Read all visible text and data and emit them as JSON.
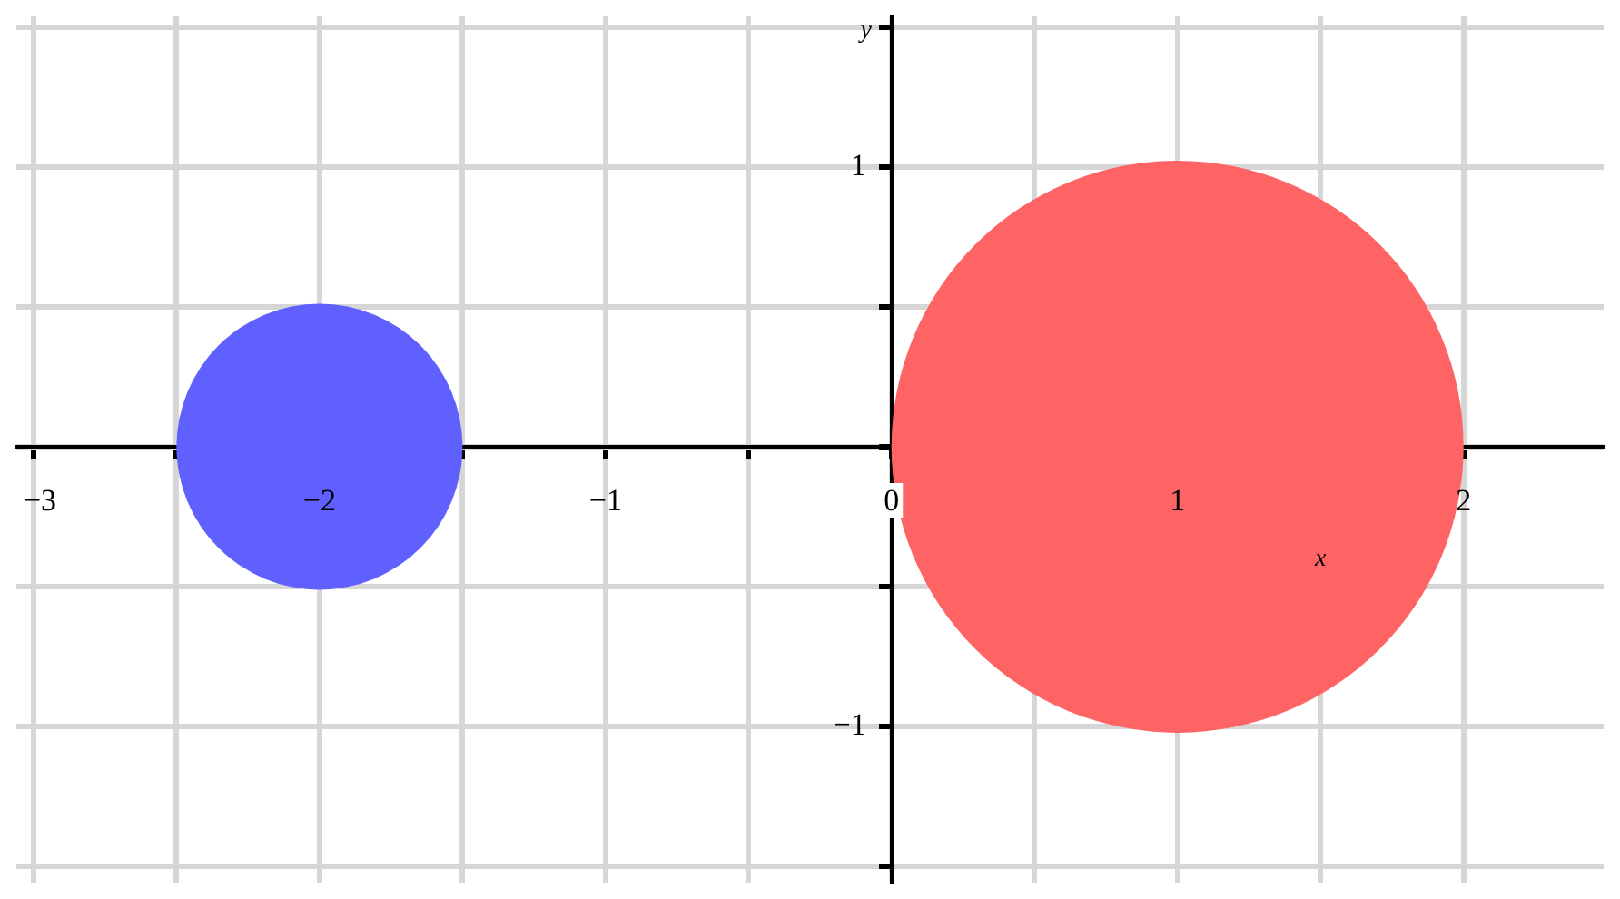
{
  "chart_data": {
    "type": "bubble",
    "xlabel": "x",
    "ylabel": "y",
    "x": [
      -2,
      1
    ],
    "values": [
      0,
      0
    ],
    "sizes": [
      0.25,
      1
    ],
    "colors": [
      "#6060ff",
      "#ff6464"
    ],
    "xlim": [
      -3.06,
      2.49
    ],
    "ylim": [
      -1.56,
      1.54
    ],
    "xticks": [
      {
        "value": -3,
        "label": "−3"
      },
      {
        "value": -2.5,
        "label": null
      },
      {
        "value": -2,
        "label": "−2"
      },
      {
        "value": -1.5,
        "label": null
      },
      {
        "value": -1,
        "label": "−1"
      },
      {
        "value": -0.5,
        "label": null
      },
      {
        "value": 0,
        "label": "0"
      },
      {
        "value": 0.5,
        "label": null
      },
      {
        "value": 1,
        "label": "1"
      },
      {
        "value": 1.5,
        "label": null
      },
      {
        "value": 2,
        "label": "2"
      }
    ],
    "yticks": [
      {
        "value": -1.5,
        "label": null
      },
      {
        "value": -1,
        "label": "−1"
      },
      {
        "value": -0.5,
        "label": null
      },
      {
        "value": 0,
        "label": null
      },
      {
        "value": 0.5,
        "label": null
      },
      {
        "value": 1,
        "label": "1"
      },
      {
        "value": 1.5,
        "label": null
      }
    ],
    "grid": true
  }
}
